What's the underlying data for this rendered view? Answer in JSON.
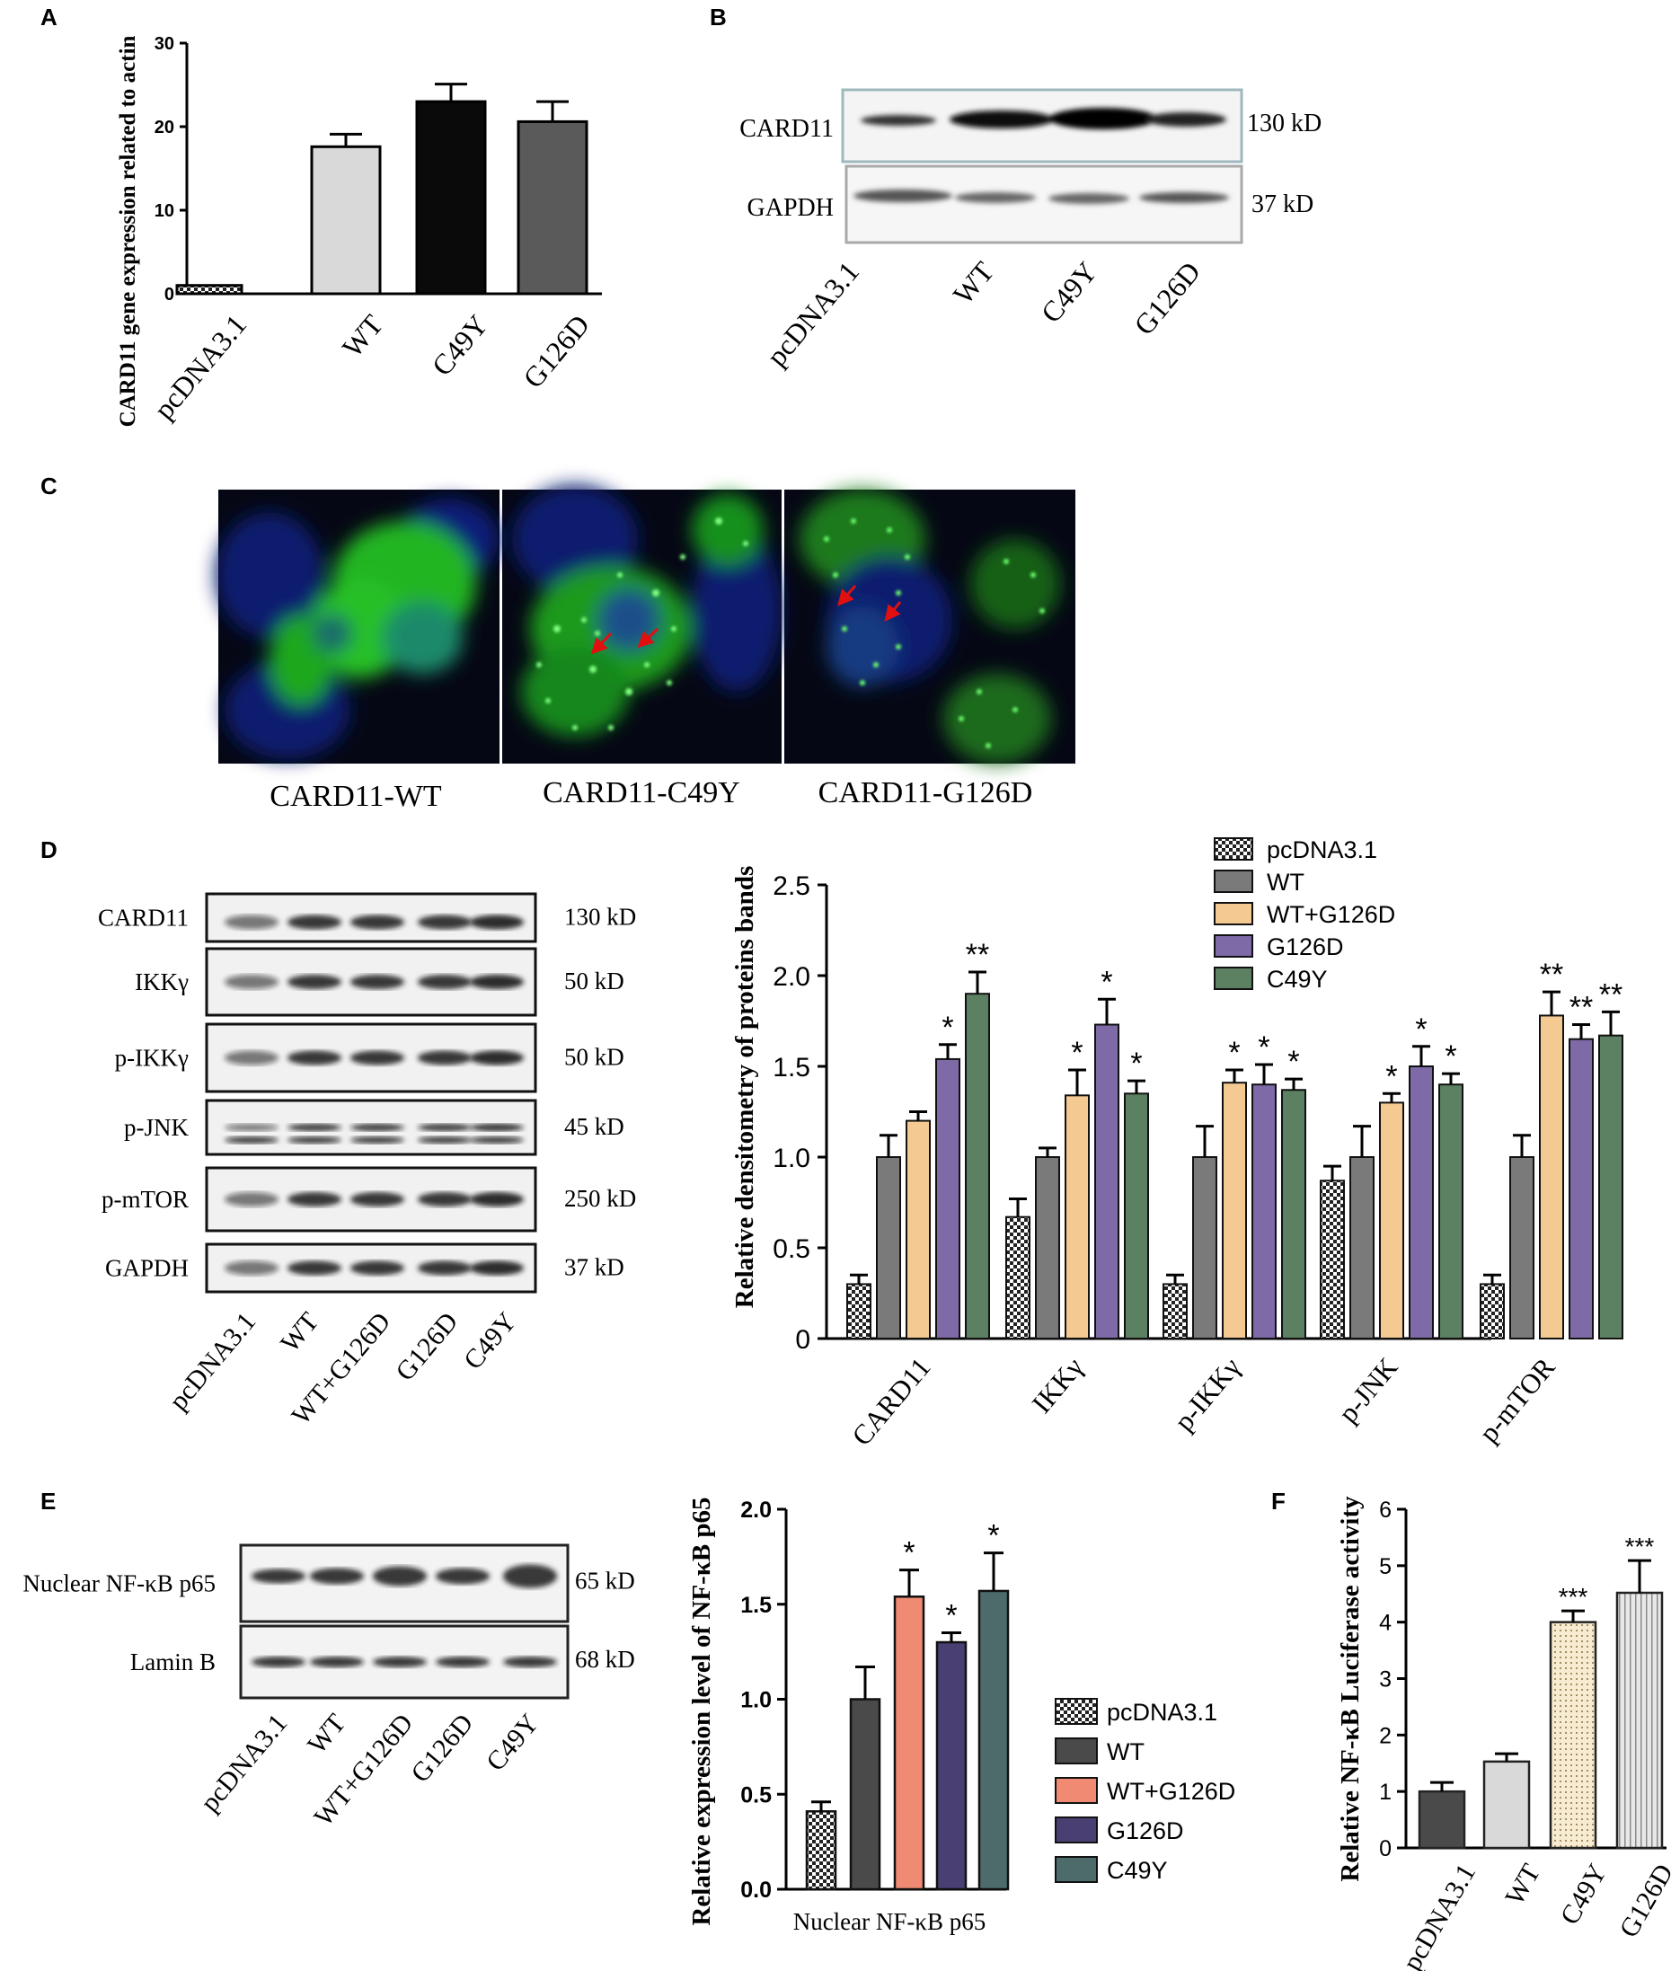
{
  "panels": {
    "A": "A",
    "B": "B",
    "C": "C",
    "D": "D",
    "E": "E",
    "F": "F"
  },
  "colors": {
    "pcdna": "#ffffff",
    "wt_light": "#d9d9d9",
    "c49y_black": "#0a0a0a",
    "g126d_gray": "#5a5a5a",
    "d_wt": "#7a7a7a",
    "d_wtg126d": "#f5c992",
    "d_g126d": "#7e6aa6",
    "d_c49y": "#5c8062",
    "e_wt": "#4a4a4a",
    "e_wtg126d": "#f08a72",
    "e_g126d": "#4a3f73",
    "e_c49y": "#4d6b6b",
    "f_c49y": "#f2e6c8",
    "f_g126d": "#e0e0e0",
    "fluor_green": "#1fc41f",
    "fluor_blue": "#10207a",
    "arrow_red": "#e01010"
  },
  "blotB": {
    "bands": [
      "CARD11",
      "GAPDH"
    ],
    "sizes": [
      "130 kD",
      "37 kD"
    ],
    "lanes": [
      "pcDNA3.1",
      "WT",
      "C49Y",
      "G126D"
    ]
  },
  "microscopy": {
    "labels": [
      "CARD11-WT",
      "CARD11-C49Y",
      "CARD11-G126D"
    ]
  },
  "blotD": {
    "bands": [
      "CARD11",
      "IKKγ",
      "p-IKKγ",
      "p-JNK",
      "p-mTOR",
      "GAPDH"
    ],
    "sizes": [
      "130 kD",
      "50 kD",
      "50 kD",
      "45 kD",
      "250 kD",
      "37 kD"
    ],
    "lanes": [
      "pcDNA3.1",
      "WT",
      "WT+G126D",
      "G126D",
      "C49Y"
    ]
  },
  "blotE": {
    "bands": [
      "Nuclear NF-κB p65",
      "Lamin B"
    ],
    "sizes": [
      "65 kD",
      "68 kD"
    ],
    "lanes": [
      "pcDNA3.1",
      "WT",
      "WT+G126D",
      "G126D",
      "C49Y"
    ]
  },
  "chart_data": [
    {
      "id": "A",
      "type": "bar",
      "categories": [
        "pcDNA3.1",
        "WT",
        "C49Y",
        "G126D"
      ],
      "values": [
        1,
        17.6,
        23,
        20.6
      ],
      "errors": [
        0.2,
        1.5,
        2.1,
        2.4
      ],
      "ylabel": "CARD11 gene expression related to actin",
      "ylim": [
        0,
        30
      ],
      "yticks": [
        0,
        10,
        20,
        30
      ]
    },
    {
      "id": "D",
      "type": "bar",
      "categories": [
        "CARD11",
        "IKKγ",
        "p-IKKγ",
        "p-JNK",
        "p-mTOR"
      ],
      "series": [
        {
          "name": "pcDNA3.1",
          "values": [
            0.3,
            0.67,
            0.3,
            0.87,
            0.3
          ],
          "errors": [
            0.05,
            0.1,
            0.05,
            0.08,
            0.05
          ],
          "sig": [
            "",
            "",
            "",
            "",
            ""
          ]
        },
        {
          "name": "WT",
          "values": [
            1.0,
            1.0,
            1.0,
            1.0,
            1.0
          ],
          "errors": [
            0.12,
            0.05,
            0.17,
            0.17,
            0.12
          ],
          "sig": [
            "",
            "",
            "",
            "",
            ""
          ]
        },
        {
          "name": "WT+G126D",
          "values": [
            1.2,
            1.34,
            1.41,
            1.3,
            1.78
          ],
          "errors": [
            0.05,
            0.14,
            0.07,
            0.05,
            0.13
          ],
          "sig": [
            "",
            "*",
            "*",
            "*",
            "**"
          ]
        },
        {
          "name": "G126D",
          "values": [
            1.54,
            1.73,
            1.4,
            1.5,
            1.65
          ],
          "errors": [
            0.08,
            0.14,
            0.11,
            0.11,
            0.08
          ],
          "sig": [
            "*",
            "*",
            "*",
            "*",
            "**"
          ]
        },
        {
          "name": "C49Y",
          "values": [
            1.9,
            1.35,
            1.37,
            1.4,
            1.67
          ],
          "errors": [
            0.12,
            0.07,
            0.06,
            0.06,
            0.13
          ],
          "sig": [
            "**",
            "*",
            "*",
            "*",
            "**"
          ]
        }
      ],
      "ylabel": "Relative densitometry of  proteins bands",
      "ylim": [
        0,
        2.5
      ],
      "yticks": [
        "0",
        "0.5",
        "1.0",
        "1.5",
        "2.0",
        "2.5"
      ],
      "legend": "top-right"
    },
    {
      "id": "E",
      "type": "bar",
      "categories": [
        "pcDNA3.1",
        "WT",
        "WT+G126D",
        "G126D",
        "C49Y"
      ],
      "values": [
        0.41,
        1.0,
        1.54,
        1.3,
        1.57
      ],
      "errors": [
        0.05,
        0.17,
        0.14,
        0.05,
        0.2
      ],
      "sig": [
        "",
        "",
        "*",
        "*",
        "*"
      ],
      "xlabel": "Nuclear NF-κB p65",
      "ylabel": "Relative expression level of NF-κB p65",
      "ylim": [
        0,
        2.0
      ],
      "yticks": [
        "0.0",
        "0.5",
        "1.0",
        "1.5",
        "2.0"
      ],
      "legend": "right"
    },
    {
      "id": "F",
      "type": "bar",
      "categories": [
        "pcDNA3.1",
        "WT",
        "C49Y",
        "G126D"
      ],
      "values": [
        1.0,
        1.53,
        4.0,
        4.52
      ],
      "errors": [
        0.16,
        0.14,
        0.2,
        0.57
      ],
      "sig": [
        "",
        "",
        "***",
        "***"
      ],
      "ylabel": "Relative NF-κB Luciferase activity",
      "ylim": [
        0,
        6
      ],
      "yticks": [
        "0",
        "1",
        "2",
        "3",
        "4",
        "5",
        "6"
      ]
    }
  ]
}
